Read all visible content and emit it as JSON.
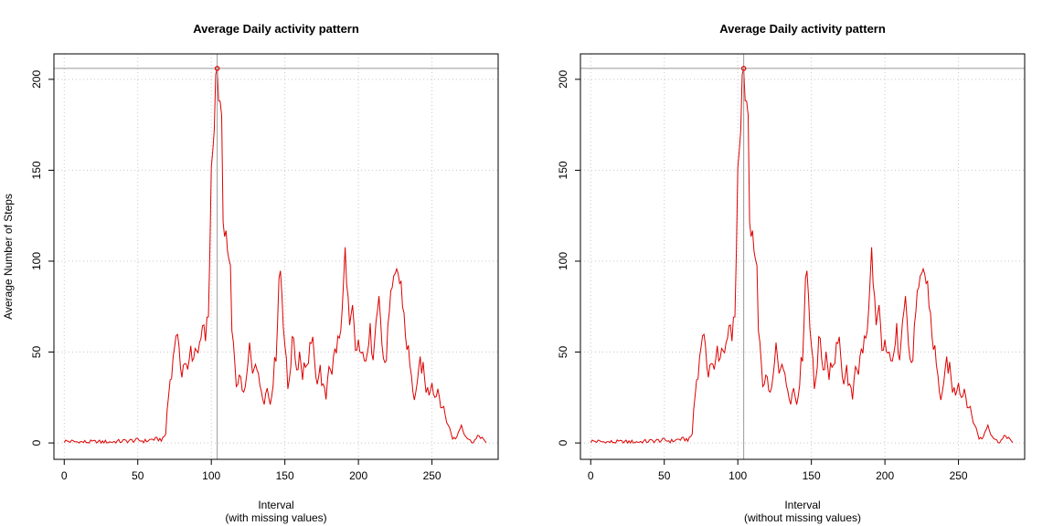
{
  "colors": {
    "series": "#dd0000",
    "grid": "#c8c8c8",
    "refline": "#999999",
    "frame": "#000000"
  },
  "chart_data": [
    {
      "type": "line",
      "title": "Average Daily activity pattern",
      "xlabel": "Interval",
      "xlabel_sub": "(with missing values)",
      "ylabel": "Average Number of Steps",
      "xlim": [
        -7,
        295
      ],
      "ylim": [
        -9,
        214
      ],
      "xticks": [
        0,
        50,
        100,
        150,
        200,
        250
      ],
      "yticks": [
        0,
        50,
        100,
        150,
        200
      ],
      "grid": true,
      "peak": {
        "x": 104,
        "y": 206
      },
      "anchors": [
        [
          1,
          1
        ],
        [
          10,
          0.5
        ],
        [
          20,
          0.5
        ],
        [
          30,
          0.5
        ],
        [
          40,
          1
        ],
        [
          50,
          1.5
        ],
        [
          55,
          1
        ],
        [
          60,
          2
        ],
        [
          67,
          2
        ],
        [
          69,
          5
        ],
        [
          70,
          18
        ],
        [
          72,
          35
        ],
        [
          74,
          45
        ],
        [
          75,
          55
        ],
        [
          76,
          63
        ],
        [
          78,
          48
        ],
        [
          80,
          40
        ],
        [
          82,
          45
        ],
        [
          84,
          38
        ],
        [
          86,
          52
        ],
        [
          88,
          47
        ],
        [
          90,
          55
        ],
        [
          92,
          50
        ],
        [
          94,
          62
        ],
        [
          96,
          58
        ],
        [
          98,
          70
        ],
        [
          100,
          150
        ],
        [
          101,
          170
        ],
        [
          102,
          175
        ],
        [
          103,
          195
        ],
        [
          104,
          206
        ],
        [
          105,
          180
        ],
        [
          106,
          185
        ],
        [
          107,
          175
        ],
        [
          108,
          130
        ],
        [
          109,
          110
        ],
        [
          110,
          108
        ],
        [
          112,
          100
        ],
        [
          113,
          95
        ],
        [
          114,
          60
        ],
        [
          116,
          40
        ],
        [
          118,
          30
        ],
        [
          120,
          38
        ],
        [
          122,
          25
        ],
        [
          124,
          35
        ],
        [
          126,
          52
        ],
        [
          128,
          40
        ],
        [
          130,
          48
        ],
        [
          132,
          35
        ],
        [
          134,
          30
        ],
        [
          136,
          24
        ],
        [
          138,
          30
        ],
        [
          140,
          22
        ],
        [
          142,
          35
        ],
        [
          144,
          50
        ],
        [
          146,
          90
        ],
        [
          147,
          95
        ],
        [
          148,
          85
        ],
        [
          150,
          55
        ],
        [
          152,
          30
        ],
        [
          154,
          45
        ],
        [
          156,
          60
        ],
        [
          158,
          40
        ],
        [
          160,
          50
        ],
        [
          162,
          38
        ],
        [
          164,
          45
        ],
        [
          166,
          40
        ],
        [
          168,
          60
        ],
        [
          170,
          45
        ],
        [
          172,
          35
        ],
        [
          174,
          40
        ],
        [
          176,
          30
        ],
        [
          178,
          25
        ],
        [
          180,
          45
        ],
        [
          182,
          40
        ],
        [
          184,
          50
        ],
        [
          186,
          55
        ],
        [
          188,
          60
        ],
        [
          189,
          70
        ],
        [
          190,
          100
        ],
        [
          191,
          102
        ],
        [
          192,
          85
        ],
        [
          194,
          60
        ],
        [
          196,
          72
        ],
        [
          198,
          50
        ],
        [
          200,
          55
        ],
        [
          202,
          45
        ],
        [
          204,
          50
        ],
        [
          206,
          45
        ],
        [
          208,
          60
        ],
        [
          210,
          50
        ],
        [
          212,
          75
        ],
        [
          214,
          80
        ],
        [
          216,
          55
        ],
        [
          218,
          40
        ],
        [
          220,
          60
        ],
        [
          222,
          75
        ],
        [
          224,
          85
        ],
        [
          226,
          98
        ],
        [
          228,
          88
        ],
        [
          230,
          80
        ],
        [
          232,
          60
        ],
        [
          234,
          50
        ],
        [
          236,
          35
        ],
        [
          238,
          25
        ],
        [
          240,
          30
        ],
        [
          242,
          45
        ],
        [
          244,
          40
        ],
        [
          246,
          30
        ],
        [
          248,
          28
        ],
        [
          250,
          35
        ],
        [
          252,
          25
        ],
        [
          254,
          30
        ],
        [
          256,
          22
        ],
        [
          258,
          18
        ],
        [
          260,
          12
        ],
        [
          262,
          8
        ],
        [
          264,
          3
        ],
        [
          266,
          2
        ],
        [
          268,
          6
        ],
        [
          270,
          10
        ],
        [
          272,
          5
        ],
        [
          274,
          3
        ],
        [
          276,
          1
        ],
        [
          278,
          1
        ],
        [
          280,
          2
        ],
        [
          282,
          4
        ],
        [
          284,
          3
        ],
        [
          286,
          0
        ]
      ]
    },
    {
      "type": "line",
      "title": "Average Daily activity pattern",
      "xlabel": "Interval",
      "xlabel_sub": "(without missing values)",
      "ylabel": "",
      "xlim": [
        -7,
        295
      ],
      "ylim": [
        -9,
        214
      ],
      "xticks": [
        0,
        50,
        100,
        150,
        200,
        250
      ],
      "yticks": [
        0,
        50,
        100,
        150,
        200
      ],
      "grid": true,
      "peak": {
        "x": 104,
        "y": 206
      },
      "anchors": [
        [
          1,
          1
        ],
        [
          10,
          0.5
        ],
        [
          20,
          0.5
        ],
        [
          30,
          0.5
        ],
        [
          40,
          1
        ],
        [
          50,
          1.5
        ],
        [
          55,
          1
        ],
        [
          60,
          2
        ],
        [
          67,
          2
        ],
        [
          69,
          5
        ],
        [
          70,
          18
        ],
        [
          72,
          35
        ],
        [
          74,
          45
        ],
        [
          75,
          55
        ],
        [
          76,
          63
        ],
        [
          78,
          48
        ],
        [
          80,
          40
        ],
        [
          82,
          45
        ],
        [
          84,
          38
        ],
        [
          86,
          52
        ],
        [
          88,
          47
        ],
        [
          90,
          55
        ],
        [
          92,
          50
        ],
        [
          94,
          62
        ],
        [
          96,
          58
        ],
        [
          98,
          70
        ],
        [
          100,
          150
        ],
        [
          101,
          170
        ],
        [
          102,
          175
        ],
        [
          103,
          195
        ],
        [
          104,
          206
        ],
        [
          105,
          180
        ],
        [
          106,
          185
        ],
        [
          107,
          175
        ],
        [
          108,
          130
        ],
        [
          109,
          110
        ],
        [
          110,
          108
        ],
        [
          112,
          100
        ],
        [
          113,
          95
        ],
        [
          114,
          60
        ],
        [
          116,
          40
        ],
        [
          118,
          30
        ],
        [
          120,
          38
        ],
        [
          122,
          25
        ],
        [
          124,
          35
        ],
        [
          126,
          52
        ],
        [
          128,
          40
        ],
        [
          130,
          48
        ],
        [
          132,
          35
        ],
        [
          134,
          30
        ],
        [
          136,
          24
        ],
        [
          138,
          30
        ],
        [
          140,
          22
        ],
        [
          142,
          35
        ],
        [
          144,
          50
        ],
        [
          146,
          90
        ],
        [
          147,
          95
        ],
        [
          148,
          85
        ],
        [
          150,
          55
        ],
        [
          152,
          30
        ],
        [
          154,
          45
        ],
        [
          156,
          60
        ],
        [
          158,
          40
        ],
        [
          160,
          50
        ],
        [
          162,
          38
        ],
        [
          164,
          45
        ],
        [
          166,
          40
        ],
        [
          168,
          60
        ],
        [
          170,
          45
        ],
        [
          172,
          35
        ],
        [
          174,
          40
        ],
        [
          176,
          30
        ],
        [
          178,
          25
        ],
        [
          180,
          45
        ],
        [
          182,
          40
        ],
        [
          184,
          50
        ],
        [
          186,
          55
        ],
        [
          188,
          60
        ],
        [
          189,
          70
        ],
        [
          190,
          100
        ],
        [
          191,
          102
        ],
        [
          192,
          85
        ],
        [
          194,
          60
        ],
        [
          196,
          72
        ],
        [
          198,
          50
        ],
        [
          200,
          55
        ],
        [
          202,
          45
        ],
        [
          204,
          50
        ],
        [
          206,
          45
        ],
        [
          208,
          60
        ],
        [
          210,
          50
        ],
        [
          212,
          75
        ],
        [
          214,
          80
        ],
        [
          216,
          55
        ],
        [
          218,
          40
        ],
        [
          220,
          60
        ],
        [
          222,
          75
        ],
        [
          224,
          85
        ],
        [
          226,
          98
        ],
        [
          228,
          88
        ],
        [
          230,
          80
        ],
        [
          232,
          60
        ],
        [
          234,
          50
        ],
        [
          236,
          35
        ],
        [
          238,
          25
        ],
        [
          240,
          30
        ],
        [
          242,
          45
        ],
        [
          244,
          40
        ],
        [
          246,
          30
        ],
        [
          248,
          28
        ],
        [
          250,
          35
        ],
        [
          252,
          25
        ],
        [
          254,
          30
        ],
        [
          256,
          22
        ],
        [
          258,
          18
        ],
        [
          260,
          12
        ],
        [
          262,
          8
        ],
        [
          264,
          3
        ],
        [
          266,
          2
        ],
        [
          268,
          6
        ],
        [
          270,
          10
        ],
        [
          272,
          5
        ],
        [
          274,
          3
        ],
        [
          276,
          1
        ],
        [
          278,
          1
        ],
        [
          280,
          2
        ],
        [
          282,
          4
        ],
        [
          284,
          3
        ],
        [
          286,
          0
        ]
      ]
    }
  ]
}
